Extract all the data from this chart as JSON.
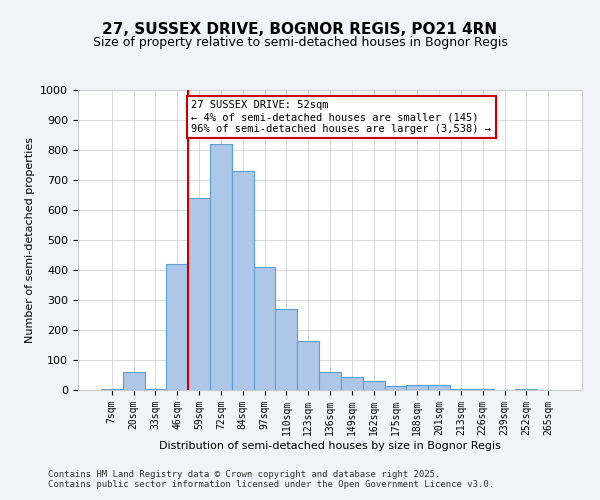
{
  "title": "27, SUSSEX DRIVE, BOGNOR REGIS, PO21 4RN",
  "subtitle": "Size of property relative to semi-detached houses in Bognor Regis",
  "xlabel": "Distribution of semi-detached houses by size in Bognor Regis",
  "ylabel": "Number of semi-detached properties",
  "bin_labels": [
    "7sqm",
    "20sqm",
    "33sqm",
    "46sqm",
    "59sqm",
    "72sqm",
    "84sqm",
    "97sqm",
    "110sqm",
    "123sqm",
    "136sqm",
    "149sqm",
    "162sqm",
    "175sqm",
    "188sqm",
    "201sqm",
    "213sqm",
    "226sqm",
    "239sqm",
    "252sqm",
    "265sqm"
  ],
  "bar_values": [
    5,
    60,
    5,
    420,
    640,
    820,
    730,
    410,
    270,
    165,
    60,
    45,
    30,
    15,
    17,
    17,
    5,
    3,
    0,
    3,
    0
  ],
  "bar_color": "#aec6e8",
  "bar_edgecolor": "#5a9fd4",
  "vline_x": 3.5,
  "vline_color": "#cc0000",
  "annotation_title": "27 SUSSEX DRIVE: 52sqm",
  "annotation_line1": "← 4% of semi-detached houses are smaller (145)",
  "annotation_line2": "96% of semi-detached houses are larger (3,538) →",
  "annotation_box_color": "#cc0000",
  "annotation_text_color": "#000000",
  "ylim": [
    0,
    1000
  ],
  "yticks": [
    0,
    100,
    200,
    300,
    400,
    500,
    600,
    700,
    800,
    900,
    1000
  ],
  "footer_line1": "Contains HM Land Registry data © Crown copyright and database right 2025.",
  "footer_line2": "Contains public sector information licensed under the Open Government Licence v3.0.",
  "bg_color": "#f0f4f8",
  "plot_bg_color": "#ffffff"
}
